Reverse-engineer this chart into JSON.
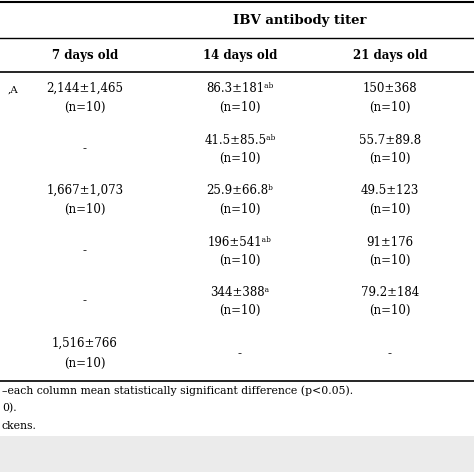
{
  "title": "IBV antibody titer",
  "col_headers": [
    "7 days old",
    "14 days old",
    "21 days old"
  ],
  "rows": [
    {
      "row_label": ",A",
      "cells": [
        "2,144±1,465\n(n=10)",
        "86.3±181ᵃᵇ\n(n=10)",
        "150±368\n(n=10)"
      ]
    },
    {
      "row_label": "",
      "cells": [
        "-",
        "41.5±85.5ᵃᵇ\n(n=10)",
        "55.7±89.8\n(n=10)"
      ]
    },
    {
      "row_label": "",
      "cells": [
        "1,667±1,073\n(n=10)",
        "25.9±66.8ᵇ\n(n=10)",
        "49.5±123\n(n=10)"
      ]
    },
    {
      "row_label": "",
      "cells": [
        "-",
        "196±541ᵃᵇ\n(n=10)",
        "91±176\n(n=10)"
      ]
    },
    {
      "row_label": "",
      "cells": [
        "-",
        "344±388ᵃ\n(n=10)",
        "79.2±184\n(n=10)"
      ]
    },
    {
      "row_label": "",
      "cells": [
        "1,516±766\n(n=10)",
        "-",
        "-"
      ]
    }
  ],
  "footnotes": [
    "–each column mean statistically significant difference (p<0.05).",
    "0).",
    "ckens."
  ],
  "bg_header": "#ebebeb",
  "bg_white": "#ffffff",
  "font_size": 8.5,
  "title_font_size": 9.5,
  "header_font_size": 8.5
}
